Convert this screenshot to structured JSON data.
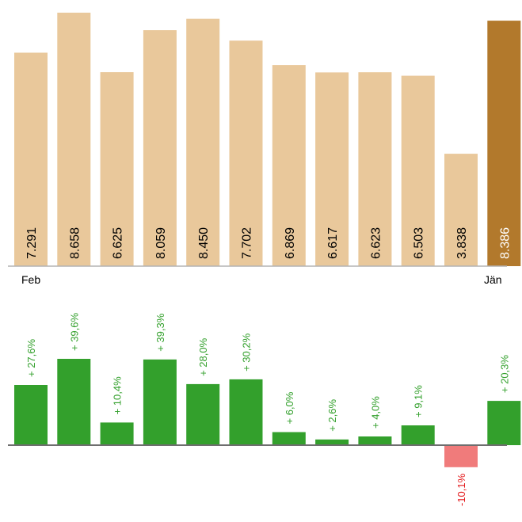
{
  "chart_data": [
    {
      "type": "bar",
      "x_start_label": "Feb",
      "x_end_label": "Jän",
      "values": [
        7291,
        8658,
        6625,
        8059,
        8450,
        7702,
        6869,
        6617,
        6623,
        6503,
        3838,
        8386
      ],
      "labels": [
        "7.291",
        "8.658",
        "6.625",
        "8.059",
        "8.450",
        "7.702",
        "6.869",
        "6.617",
        "6.623",
        "6.503",
        "3.838",
        "8.386"
      ],
      "highlight_last": true,
      "colors": {
        "bar": "#e9c89b",
        "highlight": "#b2792c",
        "text": "#000000",
        "highlight_text": "#ffffff"
      }
    },
    {
      "type": "bar",
      "values": [
        27.6,
        39.6,
        10.4,
        39.3,
        28.0,
        30.2,
        6.0,
        2.6,
        4.0,
        9.1,
        -10.1,
        20.3
      ],
      "labels": [
        "+ 27,6%",
        "+ 39,6%",
        "+ 10,4%",
        "+ 39,3%",
        "+ 28,0%",
        "+ 30,2%",
        "+ 6,0%",
        "+ 2,6%",
        "+ 4,0%",
        "+ 9,1%",
        "-10,1%",
        "+ 20,3%"
      ],
      "colors": {
        "positive": "#33a02c",
        "negative": "#f07b7b",
        "positive_text": "#33a02c",
        "negative_text": "#e41a1c"
      }
    }
  ]
}
